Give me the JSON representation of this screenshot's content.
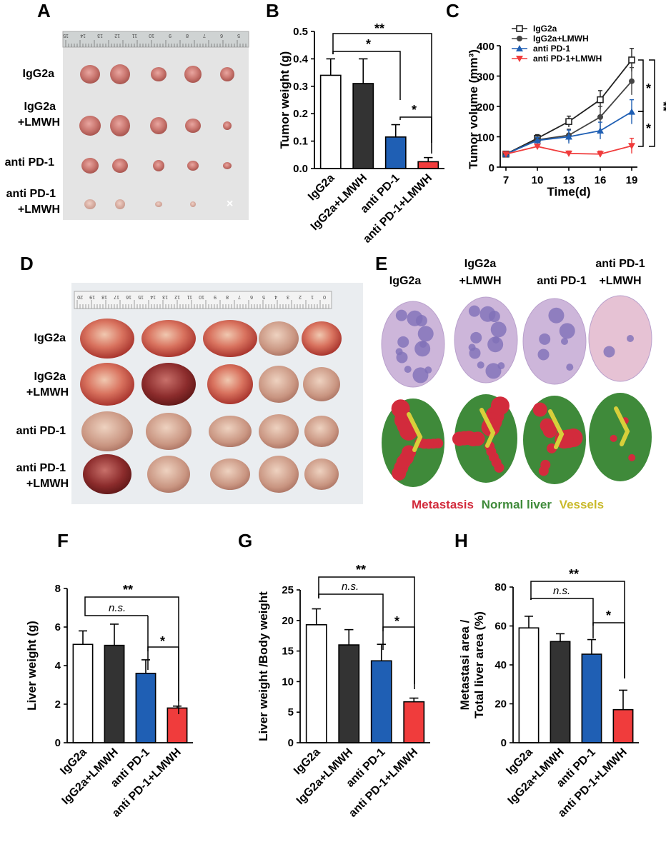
{
  "colors": {
    "igg2a": "#ffffff",
    "igg2a_lmwh": "#333333",
    "anti_pd1": "#1f5fb4",
    "anti_pd1_lmwh": "#f03c3c",
    "metastasis": "#d22b3c",
    "normal_liver": "#3f8a3a",
    "vessels": "#d8cf3a"
  },
  "panels": {
    "A": {
      "letter": "A",
      "rows": [
        [
          "IgG2a"
        ],
        [
          "IgG2a",
          "+LMWH"
        ],
        [
          "anti PD-1"
        ],
        [
          "anti PD-1",
          "+LMWH"
        ]
      ],
      "ruler_numbers": [
        "15",
        "14",
        "13",
        "12",
        "11",
        "10",
        "9",
        "8",
        "7",
        "6",
        "5"
      ],
      "missing_mark": "×"
    },
    "B": {
      "letter": "B",
      "sig_top": "**",
      "sig_mid": "*",
      "sig_low": "*"
    },
    "C": {
      "letter": "C",
      "sig_a": "*",
      "sig_b": "*",
      "sig_c": "**"
    },
    "D": {
      "letter": "D",
      "rows": [
        [
          "IgG2a"
        ],
        [
          "IgG2a",
          "+LMWH"
        ],
        [
          "anti PD-1"
        ],
        [
          "anti PD-1",
          "+LMWH"
        ]
      ],
      "ruler_numbers": [
        "20",
        "19",
        "18",
        "17",
        "16",
        "15",
        "14",
        "13",
        "12",
        "11",
        "10",
        "9",
        "8",
        "7",
        "6",
        "5",
        "4",
        "3",
        "2",
        "1",
        "0"
      ]
    },
    "E": {
      "letter": "E",
      "columns": [
        [
          "IgG2a"
        ],
        [
          "IgG2a",
          "+LMWH"
        ],
        [
          "anti PD-1"
        ],
        [
          "anti PD-1",
          "+LMWH"
        ]
      ],
      "legend": {
        "metastasis": "Metastasis",
        "normal_liver": "Normal liver",
        "vessels": "Vessels"
      }
    },
    "F": {
      "letter": "F",
      "ns": "n.s.",
      "sig_top": "**",
      "sig_low": "*"
    },
    "G": {
      "letter": "G",
      "ns": "n.s.",
      "sig_top": "**",
      "sig_low": "*"
    },
    "H": {
      "letter": "H",
      "ns": "n.s.",
      "sig_top": "**",
      "sig_low": "*"
    }
  },
  "chart_data": [
    {
      "id": "B",
      "type": "bar",
      "categories": [
        "IgG2a",
        "IgG2a+LMWH",
        "anti PD-1",
        "anti PD-1+LMWH"
      ],
      "values": [
        0.34,
        0.31,
        0.115,
        0.025
      ],
      "errors": [
        0.06,
        0.09,
        0.045,
        0.015
      ],
      "ylabel": "Tumor weight (g)",
      "ylim": [
        0,
        0.5
      ],
      "yticks": [
        "0.0",
        "0.1",
        "0.2",
        "0.3",
        "0.4",
        "0.5"
      ]
    },
    {
      "id": "C",
      "type": "line",
      "x": [
        7,
        10,
        13,
        16,
        19
      ],
      "xticks": [
        "7",
        "10",
        "13",
        "16",
        "19"
      ],
      "yticks": [
        "0",
        "100",
        "200",
        "300",
        "400"
      ],
      "xlabel": "Time(d)",
      "ylabel": "Tumor volume (mm³)",
      "ylim": [
        0,
        400
      ],
      "series": [
        {
          "name": "IgG2a",
          "values": [
            43,
            95,
            150,
            222,
            353
          ],
          "errors": [
            5,
            12,
            18,
            30,
            38
          ],
          "marker": "square-open",
          "color": "#222222"
        },
        {
          "name": "IgG2a+LMWH",
          "values": [
            43,
            90,
            105,
            165,
            283
          ],
          "errors": [
            5,
            12,
            20,
            35,
            45
          ],
          "marker": "circle",
          "color": "#444444"
        },
        {
          "name": "anti PD-1",
          "values": [
            43,
            88,
            100,
            120,
            182
          ],
          "errors": [
            5,
            10,
            22,
            28,
            40
          ],
          "marker": "triangle",
          "color": "#1f5fb4"
        },
        {
          "name": "anti PD-1+LMWH",
          "values": [
            43,
            68,
            45,
            43,
            70
          ],
          "errors": [
            4,
            8,
            8,
            10,
            25
          ],
          "marker": "triangle-down",
          "color": "#f03c3c"
        }
      ]
    },
    {
      "id": "F",
      "type": "bar",
      "categories": [
        "IgG2a",
        "IgG2a+LMWH",
        "anti PD-1",
        "anti PD-1+LMWH"
      ],
      "values": [
        5.1,
        5.05,
        3.6,
        1.8
      ],
      "errors": [
        0.7,
        1.1,
        0.7,
        0.1
      ],
      "ylabel": "Liver weight (g)",
      "ylim": [
        0,
        8
      ],
      "yticks": [
        "0",
        "2",
        "4",
        "6",
        "8"
      ]
    },
    {
      "id": "G",
      "type": "bar",
      "categories": [
        "IgG2a",
        "IgG2a+LMWH",
        "anti PD-1",
        "anti PD-1+LMWH"
      ],
      "values": [
        19.3,
        16.0,
        13.4,
        6.7
      ],
      "errors": [
        2.6,
        2.5,
        2.7,
        0.6
      ],
      "ylabel": "Liver weight /Body weight",
      "ylim": [
        0,
        25
      ],
      "yticks": [
        "0",
        "5",
        "10",
        "15",
        "20",
        "25"
      ]
    },
    {
      "id": "H",
      "type": "bar",
      "categories": [
        "IgG2a",
        "IgG2a+LMWH",
        "anti PD-1",
        "anti PD-1+LMWH"
      ],
      "values": [
        59,
        52,
        45.5,
        17
      ],
      "errors": [
        6,
        4,
        7.5,
        10
      ],
      "ylabel": "Metastasi area / Total liver area (%)",
      "ylabel_lines": [
        "Metastasi area /",
        "Total liver area (%)"
      ],
      "ylim": [
        0,
        80
      ],
      "yticks": [
        "0",
        "20",
        "40",
        "60",
        "80"
      ]
    }
  ]
}
